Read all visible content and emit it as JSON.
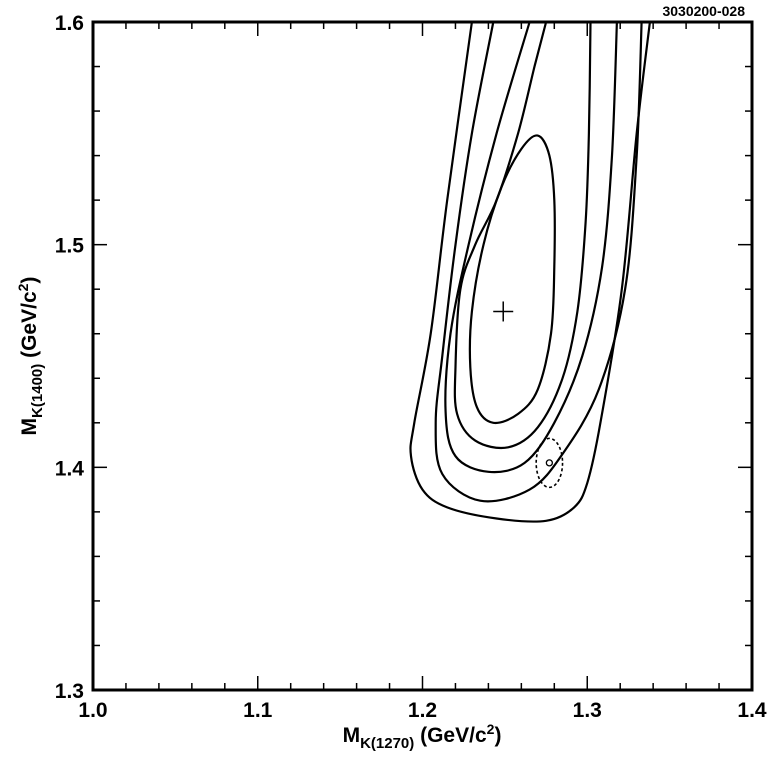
{
  "chart_data": {
    "type": "contour",
    "figure_id": "3030200-028",
    "xlabel": {
      "main": "M",
      "sub": "K(1270)",
      "unit_pre": " (GeV/c",
      "unit_sup": "2",
      "unit_post": ")"
    },
    "ylabel": {
      "main": "M",
      "sub": "K(1400)",
      "unit_pre": " (GeV/c",
      "unit_sup": "2",
      "unit_post": ")"
    },
    "xlim": [
      1.0,
      1.4
    ],
    "ylim": [
      1.3,
      1.6
    ],
    "x_ticks": [
      1.0,
      1.1,
      1.2,
      1.3,
      1.4
    ],
    "x_tick_labels": [
      "1.0",
      "1.1",
      "1.2",
      "1.3",
      "1.4"
    ],
    "y_ticks": [
      1.3,
      1.4,
      1.5,
      1.6
    ],
    "y_tick_labels": [
      "1.3",
      "1.4",
      "1.5",
      "1.6"
    ],
    "x_minor_step": 0.02,
    "y_minor_step": 0.02,
    "grid": false,
    "best_fit": {
      "x": 1.249,
      "y": 1.47
    },
    "reference_point": {
      "x": 1.277,
      "y": 1.402,
      "radius_x": 0.008,
      "radius_y": 0.011
    },
    "contours": [
      {
        "points": [
          [
            1.27,
            1.549
          ],
          [
            1.277,
            1.54
          ],
          [
            1.28,
            1.52
          ],
          [
            1.28,
            1.49
          ],
          [
            1.278,
            1.46
          ],
          [
            1.27,
            1.435
          ],
          [
            1.258,
            1.424
          ],
          [
            1.243,
            1.42
          ],
          [
            1.233,
            1.427
          ],
          [
            1.229,
            1.445
          ],
          [
            1.23,
            1.47
          ],
          [
            1.237,
            1.5
          ],
          [
            1.248,
            1.526
          ],
          [
            1.26,
            1.543
          ],
          [
            1.27,
            1.549
          ]
        ],
        "closed": true
      },
      {
        "points": [
          [
            1.275,
            1.6
          ],
          [
            1.268,
            1.58
          ],
          [
            1.258,
            1.55
          ],
          [
            1.245,
            1.52
          ],
          [
            1.232,
            1.5
          ],
          [
            1.223,
            1.48
          ],
          [
            1.22,
            1.445
          ],
          [
            1.221,
            1.424
          ],
          [
            1.232,
            1.412
          ],
          [
            1.252,
            1.409
          ],
          [
            1.27,
            1.418
          ],
          [
            1.285,
            1.44
          ],
          [
            1.294,
            1.47
          ],
          [
            1.299,
            1.51
          ],
          [
            1.301,
            1.55
          ],
          [
            1.302,
            1.6
          ]
        ],
        "closed": false
      },
      {
        "points": [
          [
            1.265,
            1.6
          ],
          [
            1.245,
            1.55
          ],
          [
            1.228,
            1.5
          ],
          [
            1.217,
            1.46
          ],
          [
            1.214,
            1.425
          ],
          [
            1.22,
            1.405
          ],
          [
            1.24,
            1.398
          ],
          [
            1.262,
            1.402
          ],
          [
            1.28,
            1.42
          ],
          [
            1.297,
            1.45
          ],
          [
            1.309,
            1.49
          ],
          [
            1.315,
            1.54
          ],
          [
            1.318,
            1.6
          ]
        ],
        "closed": false
      },
      {
        "points": [
          [
            1.243,
            1.6
          ],
          [
            1.23,
            1.55
          ],
          [
            1.22,
            1.5
          ],
          [
            1.212,
            1.45
          ],
          [
            1.208,
            1.42
          ],
          [
            1.212,
            1.397
          ],
          [
            1.235,
            1.385
          ],
          [
            1.265,
            1.39
          ],
          [
            1.285,
            1.406
          ],
          [
            1.307,
            1.435
          ],
          [
            1.323,
            1.48
          ],
          [
            1.33,
            1.54
          ],
          [
            1.333,
            1.6
          ]
        ],
        "closed": false
      },
      {
        "points": [
          [
            1.23,
            1.6
          ],
          [
            1.215,
            1.52
          ],
          [
            1.205,
            1.46
          ],
          [
            1.195,
            1.42
          ],
          [
            1.193,
            1.405
          ],
          [
            1.2,
            1.39
          ],
          [
            1.215,
            1.382
          ],
          [
            1.245,
            1.377
          ],
          [
            1.275,
            1.376
          ],
          [
            1.292,
            1.382
          ],
          [
            1.3,
            1.393
          ],
          [
            1.308,
            1.42
          ],
          [
            1.321,
            1.48
          ],
          [
            1.33,
            1.55
          ],
          [
            1.338,
            1.6
          ]
        ],
        "closed": false
      }
    ]
  }
}
